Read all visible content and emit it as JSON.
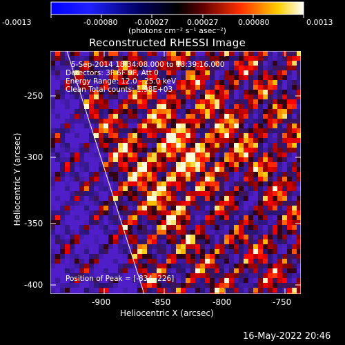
{
  "colorbar": {
    "ticks": [
      "-0.0013",
      "-0.00080",
      "-0.00027",
      "0.00027",
      "0.00080",
      "0.0013"
    ],
    "units": "(photons cm⁻² s⁻¹ asec⁻²)"
  },
  "title": "Reconstructed RHESSI Image",
  "overlay": {
    "line1": "5-Sep-2014 18:34:08.000 to 18:39:16.000",
    "line2": "Detectors: 3F 6F 9F, Att 0",
    "line3": "Energy Range: 12.0 - 25.0 keV",
    "line4": "Clean     Total counts: 1.98E+03",
    "peak": "Position of Peak = [-834,-226]"
  },
  "x_axis": {
    "label": "Heliocentric X (arcsec)",
    "ticks": [
      "-900",
      "-850",
      "-800",
      "-750"
    ]
  },
  "y_axis": {
    "label": "Heliocentric Y (arcsec)",
    "ticks": [
      "-250",
      "-300",
      "-350",
      "-400"
    ]
  },
  "footer": {
    "timestamp": "16-May-2022 20:46"
  },
  "colors": {
    "background": "#000000",
    "negative_low": "#0000ff",
    "neutral": "#000000",
    "positive_mid": "#ff3000",
    "positive_high": "#ffffff"
  }
}
